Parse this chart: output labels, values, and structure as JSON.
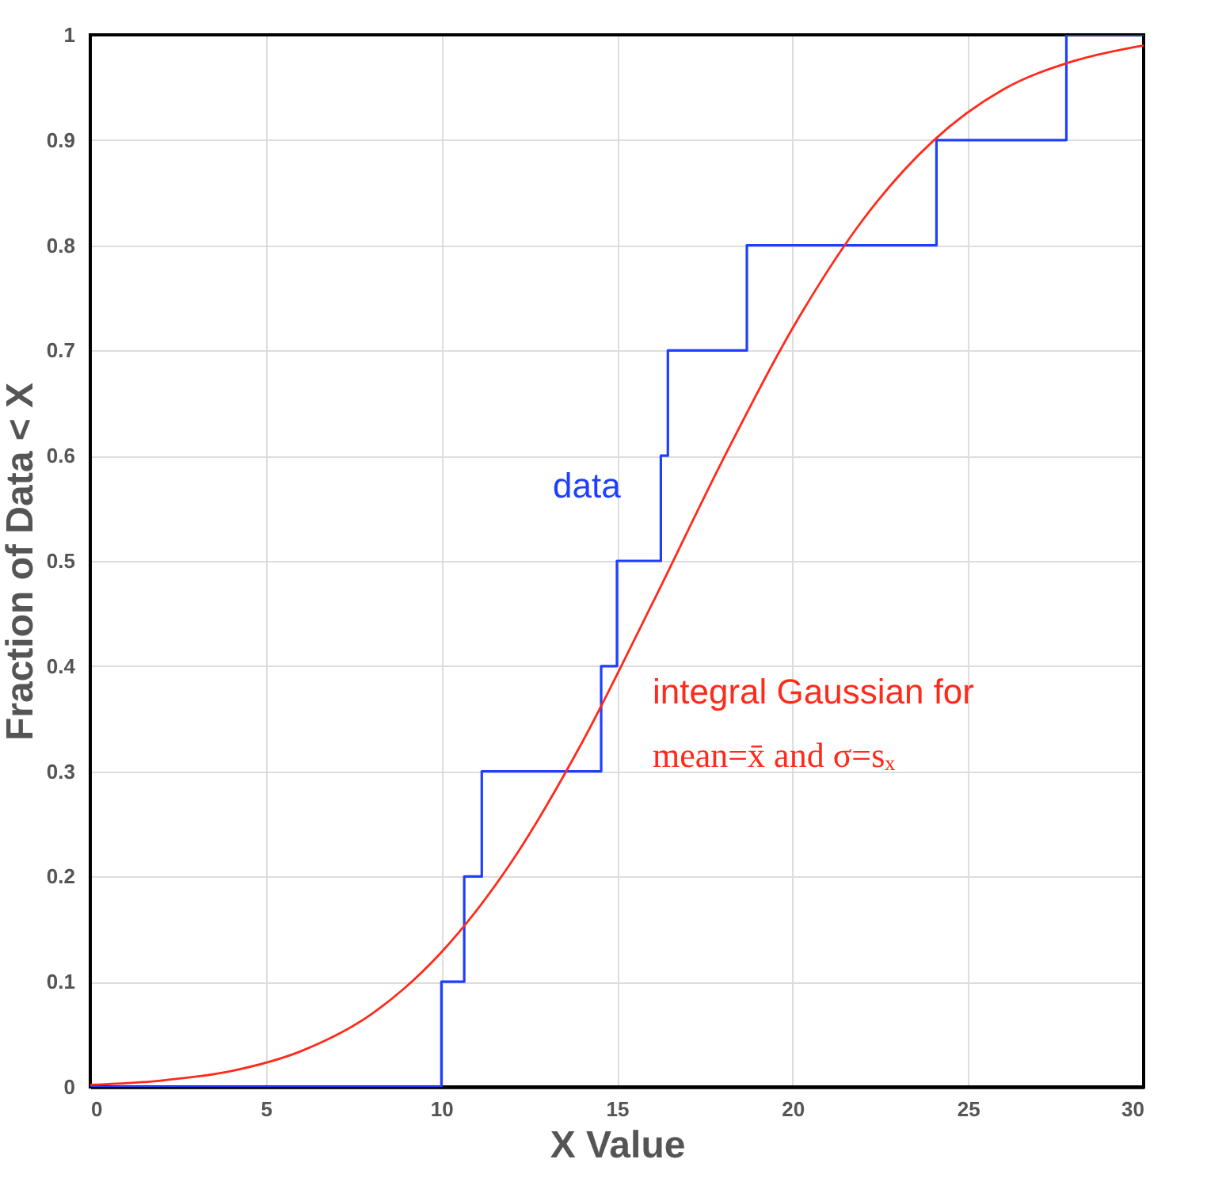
{
  "chart_data": {
    "type": "step",
    "xlabel": "X Value",
    "ylabel": "Fraction of Data < X",
    "xlim": [
      0,
      30
    ],
    "xticks": [
      0,
      5,
      10,
      15,
      20,
      25,
      30
    ],
    "ylim": [
      0,
      1
    ],
    "yticks": [
      0,
      0.1,
      0.2,
      0.3,
      0.4,
      0.5,
      0.6,
      0.7,
      0.8,
      0.9,
      1
    ],
    "grid": true,
    "series": [
      {
        "color": "#1f3fff",
        "x": [
          0,
          10,
          10.65,
          11.15,
          14.55,
          15,
          16.25,
          16.45,
          18.7,
          24.1,
          27.8,
          30
        ],
        "values": [
          0,
          0.1,
          0.2,
          0.3,
          0.4,
          0.5,
          0.6,
          0.7,
          0.8,
          0.9,
          1,
          1
        ]
      },
      {
        "type": "line",
        "color": "#ff2a1a",
        "x": [
          0,
          2,
          4,
          6,
          8,
          10,
          12,
          14,
          16,
          18,
          20,
          22,
          24,
          26,
          28,
          30
        ],
        "values": [
          0.002,
          0.006,
          0.015,
          0.034,
          0.069,
          0.128,
          0.214,
          0.327,
          0.459,
          0.595,
          0.721,
          0.824,
          0.899,
          0.948,
          0.975,
          0.99
        ]
      }
    ],
    "annotations": [
      "data",
      "integral Gaussian for",
      "mean=x̄ and σ=sₓ"
    ]
  }
}
